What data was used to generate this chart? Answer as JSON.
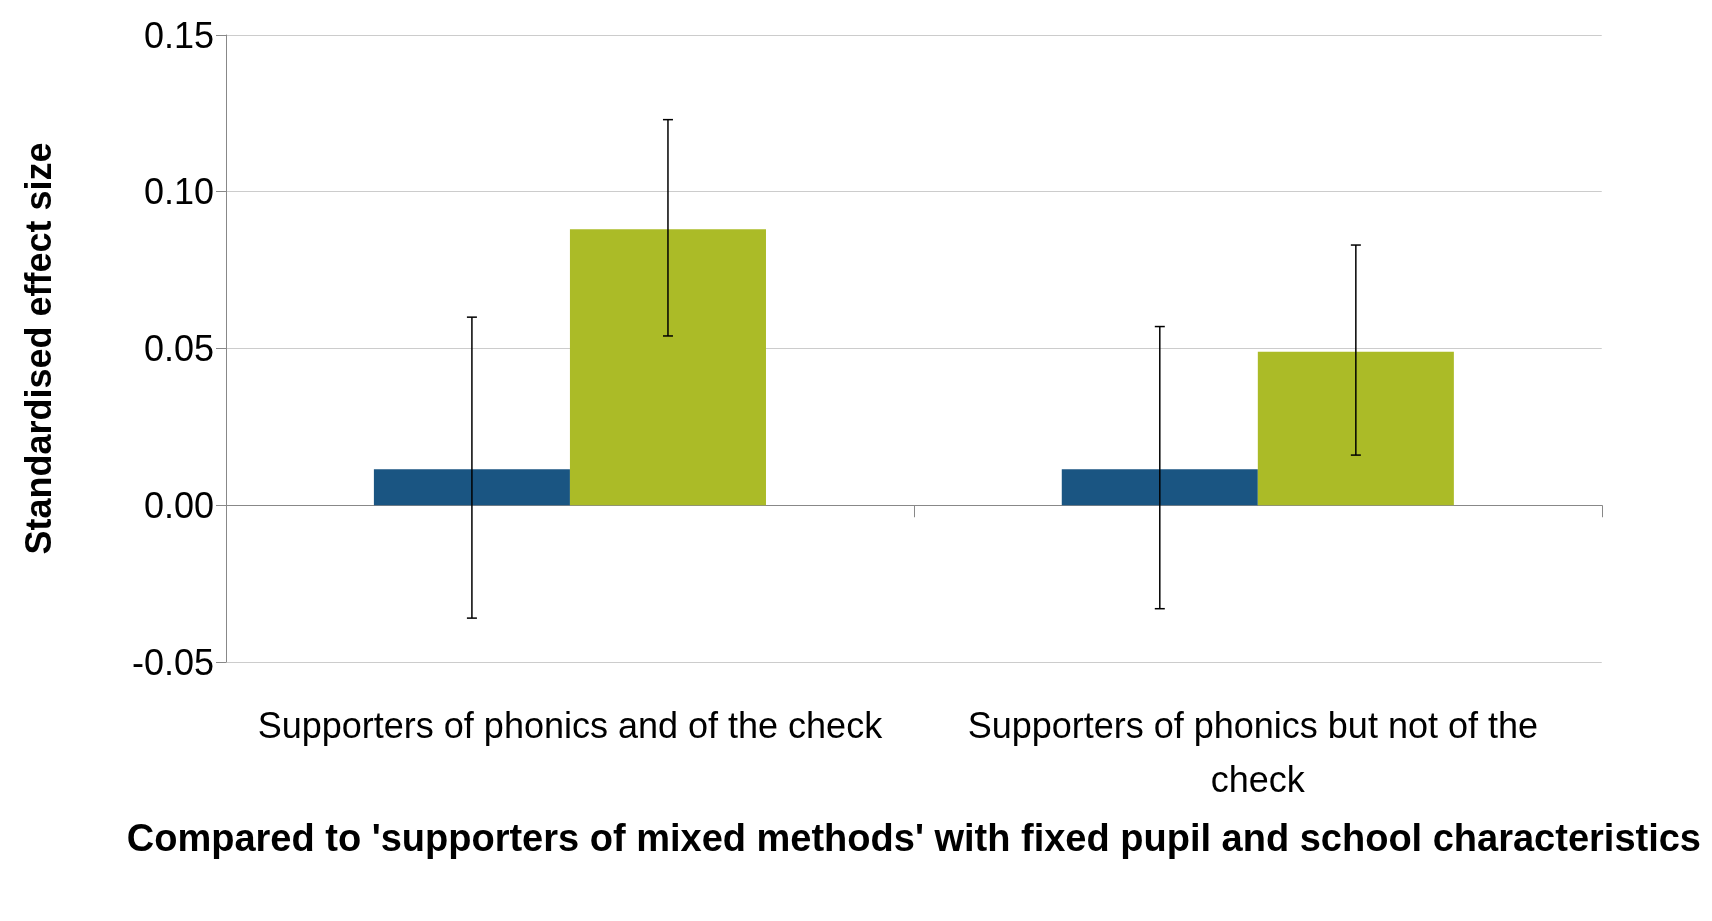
{
  "chart_data": {
    "type": "bar",
    "xlabel": "Compared to 'supporters of mixed methods' with fixed pupil and school characteristics",
    "ylabel": "Standardised effect size",
    "categories": [
      "Supporters of phonics and of the check",
      "Supporters of phonics but not of the check"
    ],
    "series": [
      {
        "color": "#1a5582",
        "values": [
          0.0115,
          0.0115
        ],
        "errors": [
          [
            -0.036,
            0.06
          ],
          [
            -0.033,
            0.057
          ]
        ]
      },
      {
        "color": "#abbb27",
        "values": [
          0.088,
          0.049
        ],
        "errors": [
          [
            0.054,
            0.123
          ],
          [
            0.016,
            0.083
          ]
        ]
      }
    ],
    "ylim": [
      -0.05,
      0.15
    ],
    "yticks": [
      {
        "value": -0.05,
        "label": "-0.05"
      },
      {
        "value": 0,
        "label": "0.00"
      },
      {
        "value": 0.05,
        "label": "0.05"
      },
      {
        "value": 0.1,
        "label": "0.10"
      },
      {
        "value": 0.15,
        "label": "0.15"
      }
    ],
    "grid": "y"
  }
}
